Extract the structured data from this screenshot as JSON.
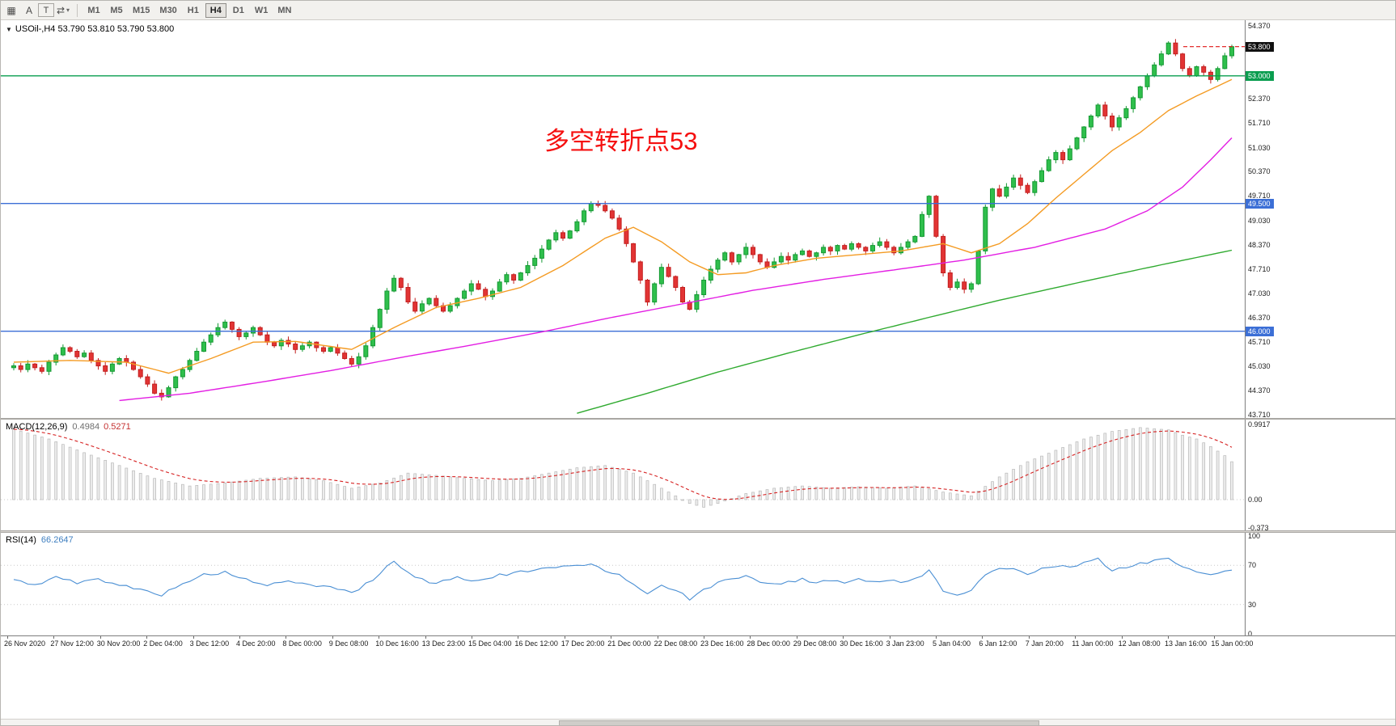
{
  "toolbar": {
    "icons": {
      "grip": "▦",
      "cycle": "⇄",
      "caret": "▾",
      "collapse": "▼"
    },
    "tools": [
      {
        "label": "A"
      },
      {
        "label": "T"
      }
    ],
    "timeframes": [
      "M1",
      "M5",
      "M15",
      "M30",
      "H1",
      "H4",
      "D1",
      "W1",
      "MN"
    ],
    "active_timeframe": "H4"
  },
  "colors": {
    "up": "#2fbf4c",
    "up_stroke": "#159a33",
    "down": "#e23434",
    "down_stroke": "#c31f1f",
    "macd_hist_fill": "#ececec",
    "macd_hist_stroke": "#b9b9b9",
    "macd_signal": "#d62222",
    "rsi_line": "#4a8fd4",
    "annotation": "#f50f0f",
    "current_price_line": "#e01515"
  },
  "chart_data": [
    {
      "type": "candlestick",
      "title": "USOil-,H4",
      "ohlc_text": "53.790 53.810 53.790 53.800",
      "last_ohlc": {
        "open": 53.79,
        "high": 53.81,
        "low": 53.79,
        "close": 53.8
      },
      "annotation": "多空转折点53",
      "ylim": [
        43.71,
        54.37
      ],
      "closes": [
        45.05,
        44.95,
        45.1,
        45.0,
        44.9,
        45.15,
        45.35,
        45.55,
        45.45,
        45.3,
        45.4,
        45.2,
        45.05,
        44.9,
        45.1,
        45.25,
        45.15,
        44.95,
        44.75,
        44.55,
        44.3,
        44.2,
        44.45,
        44.75,
        44.95,
        45.2,
        45.45,
        45.7,
        45.9,
        46.1,
        46.25,
        46.05,
        45.85,
        45.95,
        46.1,
        45.9,
        45.7,
        45.6,
        45.75,
        45.65,
        45.5,
        45.6,
        45.7,
        45.55,
        45.45,
        45.55,
        45.4,
        45.25,
        45.1,
        45.3,
        45.6,
        46.1,
        46.6,
        47.1,
        47.45,
        47.2,
        46.8,
        46.55,
        46.75,
        46.9,
        46.7,
        46.55,
        46.7,
        46.9,
        47.1,
        47.3,
        47.15,
        46.95,
        47.1,
        47.35,
        47.55,
        47.4,
        47.6,
        47.8,
        48.0,
        48.25,
        48.5,
        48.7,
        48.55,
        48.75,
        49.0,
        49.3,
        49.5,
        49.45,
        49.3,
        49.1,
        48.8,
        48.4,
        47.9,
        47.4,
        46.8,
        47.3,
        47.75,
        47.5,
        47.2,
        46.8,
        46.6,
        47.0,
        47.4,
        47.7,
        47.95,
        48.15,
        47.9,
        48.1,
        48.3,
        48.1,
        47.9,
        47.75,
        47.9,
        48.05,
        47.95,
        48.1,
        48.2,
        48.05,
        48.15,
        48.3,
        48.2,
        48.35,
        48.25,
        48.4,
        48.3,
        48.2,
        48.35,
        48.45,
        48.3,
        48.15,
        48.3,
        48.45,
        48.6,
        49.2,
        49.7,
        48.6,
        47.6,
        47.2,
        47.35,
        47.15,
        47.3,
        48.2,
        49.4,
        49.9,
        49.7,
        49.95,
        50.2,
        50.0,
        49.8,
        50.1,
        50.4,
        50.7,
        50.9,
        50.7,
        51.0,
        51.3,
        51.6,
        51.9,
        52.2,
        51.9,
        51.6,
        51.85,
        52.1,
        52.4,
        52.7,
        53.0,
        53.3,
        53.6,
        53.9,
        53.6,
        53.2,
        53.0,
        53.25,
        53.1,
        52.9,
        53.2,
        53.55,
        53.8
      ],
      "ma_lines": [
        {
          "name": "ma-fast-orange",
          "color": "#f49b23",
          "points": [
            [
              0,
              45.15
            ],
            [
              8,
              45.2
            ],
            [
              16,
              45.15
            ],
            [
              22,
              44.85
            ],
            [
              28,
              45.25
            ],
            [
              34,
              45.7
            ],
            [
              40,
              45.72
            ],
            [
              48,
              45.5
            ],
            [
              54,
              46.1
            ],
            [
              60,
              46.65
            ],
            [
              66,
              46.9
            ],
            [
              72,
              47.2
            ],
            [
              78,
              47.8
            ],
            [
              84,
              48.55
            ],
            [
              88,
              48.85
            ],
            [
              92,
              48.45
            ],
            [
              96,
              47.9
            ],
            [
              100,
              47.55
            ],
            [
              104,
              47.6
            ],
            [
              108,
              47.8
            ],
            [
              114,
              48.0
            ],
            [
              120,
              48.1
            ],
            [
              126,
              48.2
            ],
            [
              132,
              48.4
            ],
            [
              136,
              48.15
            ],
            [
              140,
              48.4
            ],
            [
              144,
              48.95
            ],
            [
              148,
              49.65
            ],
            [
              152,
              50.3
            ],
            [
              156,
              50.95
            ],
            [
              160,
              51.45
            ],
            [
              164,
              52.05
            ],
            [
              168,
              52.45
            ],
            [
              173,
              52.9
            ]
          ]
        },
        {
          "name": "ma-mid-magenta",
          "color": "#e31ee3",
          "points": [
            [
              15,
              44.1
            ],
            [
              25,
              44.3
            ],
            [
              35,
              44.6
            ],
            [
              45,
              44.92
            ],
            [
              55,
              45.28
            ],
            [
              65,
              45.62
            ],
            [
              75,
              45.98
            ],
            [
              85,
              46.38
            ],
            [
              95,
              46.75
            ],
            [
              105,
              47.12
            ],
            [
              115,
              47.42
            ],
            [
              125,
              47.68
            ],
            [
              135,
              47.95
            ],
            [
              145,
              48.3
            ],
            [
              155,
              48.8
            ],
            [
              161,
              49.3
            ],
            [
              166,
              49.95
            ],
            [
              170,
              50.7
            ],
            [
              173,
              51.3
            ]
          ]
        },
        {
          "name": "ma-slow-green",
          "color": "#2faa2f",
          "points": [
            [
              80,
              43.75
            ],
            [
              90,
              44.3
            ],
            [
              100,
              44.88
            ],
            [
              110,
              45.4
            ],
            [
              120,
              45.9
            ],
            [
              130,
              46.38
            ],
            [
              140,
              46.85
            ],
            [
              150,
              47.28
            ],
            [
              160,
              47.7
            ],
            [
              167,
              47.98
            ],
            [
              173,
              48.22
            ]
          ]
        }
      ],
      "hlines": [
        {
          "price": 53.0,
          "color": "#0a9d4f",
          "label": "53.000"
        },
        {
          "price": 49.5,
          "color": "#3c6fd6",
          "label": "49.500"
        },
        {
          "price": 46.0,
          "color": "#3c6fd6",
          "label": "46.000"
        }
      ],
      "current_price": 53.8,
      "price_axis_labels": [
        "54.370",
        "53.030",
        "52.370",
        "51.710",
        "51.030",
        "50.370",
        "49.710",
        "49.030",
        "48.370",
        "47.710",
        "47.030",
        "46.370",
        "45.710",
        "45.030",
        "44.370",
        "43.710"
      ],
      "price_badges": [
        {
          "value": "53.800",
          "bg": "#101010"
        },
        {
          "value": "53.000",
          "bg": "#0a9d4f"
        },
        {
          "value": "49.500",
          "bg": "#3c6fd6"
        },
        {
          "value": "46.000",
          "bg": "#3c6fd6"
        }
      ],
      "time_labels": [
        "26 Nov 2020",
        "27 Nov 12:00",
        "30 Nov 20:00",
        "2 Dec 04:00",
        "3 Dec 12:00",
        "4 Dec 20:00",
        "8 Dec 00:00",
        "9 Dec 08:00",
        "10 Dec 16:00",
        "13 Dec 23:00",
        "15 Dec 04:00",
        "16 Dec 12:00",
        "17 Dec 20:00",
        "21 Dec 00:00",
        "22 Dec 08:00",
        "23 Dec 16:00",
        "28 Dec 00:00",
        "29 Dec 08:00",
        "30 Dec 16:00",
        "3 Jan 23:00",
        "5 Jan 04:00",
        "6 Jan 12:00",
        "7 Jan 20:00",
        "11 Jan 00:00",
        "12 Jan 08:00",
        "13 Jan 16:00",
        "15 Jan 00:00"
      ]
    },
    {
      "type": "bar",
      "label": "MACD(12,26,9)",
      "value_main": "0.4984",
      "value_signal": "0.5271",
      "ylim": [
        -0.373,
        0.9917
      ],
      "scale_labels": [
        {
          "text": "0.9917",
          "value": 0.9917
        },
        {
          "text": "0.00",
          "value": 0
        },
        {
          "text": "-0.373",
          "value": -0.373
        }
      ],
      "macd_points": [
        [
          0,
          0.93
        ],
        [
          5,
          0.8
        ],
        [
          10,
          0.62
        ],
        [
          15,
          0.45
        ],
        [
          20,
          0.28
        ],
        [
          25,
          0.18
        ],
        [
          30,
          0.22
        ],
        [
          35,
          0.28
        ],
        [
          40,
          0.3
        ],
        [
          44,
          0.25
        ],
        [
          48,
          0.15
        ],
        [
          52,
          0.22
        ],
        [
          56,
          0.35
        ],
        [
          60,
          0.32
        ],
        [
          64,
          0.28
        ],
        [
          68,
          0.25
        ],
        [
          72,
          0.28
        ],
        [
          76,
          0.35
        ],
        [
          80,
          0.42
        ],
        [
          84,
          0.45
        ],
        [
          88,
          0.35
        ],
        [
          92,
          0.15
        ],
        [
          96,
          -0.05
        ],
        [
          98,
          -0.1
        ],
        [
          100,
          -0.05
        ],
        [
          104,
          0.08
        ],
        [
          108,
          0.15
        ],
        [
          112,
          0.18
        ],
        [
          116,
          0.15
        ],
        [
          120,
          0.17
        ],
        [
          124,
          0.15
        ],
        [
          128,
          0.18
        ],
        [
          132,
          0.1
        ],
        [
          136,
          0.05
        ],
        [
          140,
          0.3
        ],
        [
          144,
          0.5
        ],
        [
          148,
          0.65
        ],
        [
          152,
          0.8
        ],
        [
          156,
          0.9
        ],
        [
          160,
          0.95
        ],
        [
          164,
          0.92
        ],
        [
          166,
          0.85
        ],
        [
          168,
          0.8
        ],
        [
          170,
          0.7
        ],
        [
          172,
          0.58
        ],
        [
          173,
          0.5
        ]
      ]
    },
    {
      "type": "line",
      "label": "RSI(14)",
      "value": "66.2647",
      "ylim": [
        0,
        100
      ],
      "levels": [
        70,
        30
      ],
      "scale_labels": [
        {
          "text": "100",
          "value": 100
        },
        {
          "text": "70",
          "value": 70
        },
        {
          "text": "30",
          "value": 30
        },
        {
          "text": "0",
          "value": 0
        }
      ],
      "points": [
        [
          0,
          55
        ],
        [
          3,
          50
        ],
        [
          6,
          58
        ],
        [
          9,
          52
        ],
        [
          12,
          56
        ],
        [
          15,
          50
        ],
        [
          18,
          45
        ],
        [
          21,
          40
        ],
        [
          24,
          52
        ],
        [
          27,
          60
        ],
        [
          30,
          63
        ],
        [
          33,
          55
        ],
        [
          36,
          50
        ],
        [
          39,
          53
        ],
        [
          42,
          50
        ],
        [
          45,
          48
        ],
        [
          48,
          42
        ],
        [
          51,
          55
        ],
        [
          54,
          75
        ],
        [
          56,
          62
        ],
        [
          58,
          55
        ],
        [
          60,
          52
        ],
        [
          63,
          58
        ],
        [
          66,
          54
        ],
        [
          69,
          60
        ],
        [
          72,
          63
        ],
        [
          75,
          66
        ],
        [
          78,
          68
        ],
        [
          81,
          71
        ],
        [
          82,
          72
        ],
        [
          84,
          65
        ],
        [
          86,
          60
        ],
        [
          88,
          52
        ],
        [
          90,
          40
        ],
        [
          92,
          50
        ],
        [
          94,
          45
        ],
        [
          96,
          35
        ],
        [
          98,
          45
        ],
        [
          100,
          52
        ],
        [
          102,
          56
        ],
        [
          104,
          60
        ],
        [
          106,
          54
        ],
        [
          108,
          50
        ],
        [
          110,
          53
        ],
        [
          112,
          56
        ],
        [
          114,
          52
        ],
        [
          116,
          55
        ],
        [
          118,
          53
        ],
        [
          120,
          56
        ],
        [
          122,
          53
        ],
        [
          124,
          55
        ],
        [
          126,
          52
        ],
        [
          128,
          56
        ],
        [
          130,
          65
        ],
        [
          132,
          45
        ],
        [
          134,
          40
        ],
        [
          136,
          44
        ],
        [
          138,
          60
        ],
        [
          140,
          66
        ],
        [
          142,
          68
        ],
        [
          144,
          62
        ],
        [
          146,
          66
        ],
        [
          148,
          70
        ],
        [
          150,
          68
        ],
        [
          152,
          72
        ],
        [
          154,
          76
        ],
        [
          156,
          65
        ],
        [
          158,
          68
        ],
        [
          160,
          72
        ],
        [
          162,
          75
        ],
        [
          164,
          78
        ],
        [
          166,
          68
        ],
        [
          168,
          63
        ],
        [
          170,
          60
        ],
        [
          172,
          64
        ],
        [
          173,
          66
        ]
      ]
    }
  ]
}
